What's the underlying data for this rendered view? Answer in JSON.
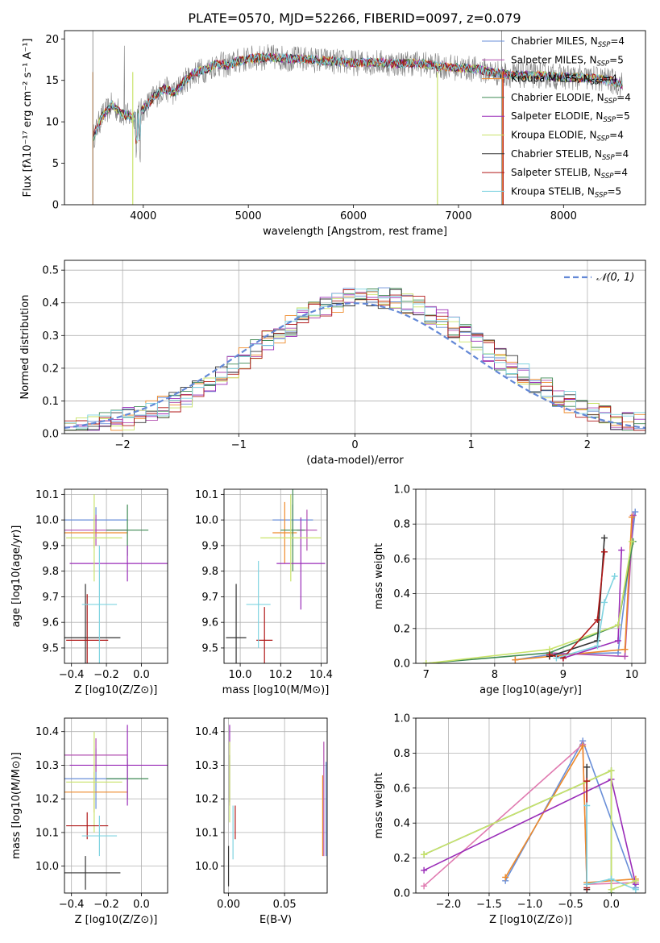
{
  "figure_title": "PLATE=0570, MJD=52266, FIBERID=0097, z=0.079",
  "legend_entries": [
    {
      "name": "Chabrier MILES, N",
      "sub": "SSP",
      "tail": "=4",
      "color": "#6a8fd8"
    },
    {
      "name": "Salpeter MILES, N",
      "sub": "SSP",
      "tail": "=5",
      "color": "#b24fb0"
    },
    {
      "name": "Kroupa MILES, N",
      "sub": "SSP",
      "tail": "=4",
      "color": "#ee8a2a"
    },
    {
      "name": "Chabrier ELODIE, N",
      "sub": "SSP",
      "tail": "=4",
      "color": "#3f8a54"
    },
    {
      "name": "Salpeter ELODIE, N",
      "sub": "SSP",
      "tail": "=5",
      "color": "#9a2cb8"
    },
    {
      "name": "Kroupa ELODIE, N",
      "sub": "SSP",
      "tail": "=4",
      "color": "#c9e36a"
    },
    {
      "name": "Chabrier STELIB, N",
      "sub": "SSP",
      "tail": "=4",
      "color": "#333333"
    },
    {
      "name": "Salpeter STELIB, N",
      "sub": "SSP",
      "tail": "=4",
      "color": "#b01818"
    },
    {
      "name": "Kroupa STELIB, N",
      "sub": "SSP",
      "tail": "=5",
      "color": "#7fd3e0"
    }
  ],
  "chart_data": [
    {
      "id": "spectrum",
      "type": "line",
      "title": "PLATE=0570, MJD=52266, FIBERID=0097, z=0.079",
      "xlabel": "wavelength [Angstrom, rest frame]",
      "ylabel": "Flux [fλ10⁻¹⁷ erg cm⁻² s⁻¹ A⁻¹]",
      "xlim": [
        3250,
        8780
      ],
      "ylim": [
        0,
        21
      ],
      "xticks": [
        4000,
        5000,
        6000,
        7000,
        8000
      ],
      "yticks": [
        0,
        5,
        10,
        15,
        20
      ],
      "legend": "top-right",
      "envelope": [
        [
          3520,
          8
        ],
        [
          3600,
          10.5
        ],
        [
          3700,
          12
        ],
        [
          3800,
          11
        ],
        [
          3900,
          10.5
        ],
        [
          4000,
          11.5
        ],
        [
          4100,
          13
        ],
        [
          4200,
          14
        ],
        [
          4300,
          13.5
        ],
        [
          4400,
          15
        ],
        [
          4500,
          16
        ],
        [
          4600,
          16.3
        ],
        [
          4700,
          17
        ],
        [
          4800,
          16.8
        ],
        [
          4900,
          17.3
        ],
        [
          5000,
          17.6
        ],
        [
          5200,
          17.8
        ],
        [
          5400,
          17.6
        ],
        [
          5600,
          17.5
        ],
        [
          5800,
          17.3
        ],
        [
          6000,
          17.1
        ],
        [
          6200,
          17.2
        ],
        [
          6400,
          17
        ],
        [
          6600,
          17.1
        ],
        [
          6800,
          16.7
        ],
        [
          7000,
          16.5
        ],
        [
          7200,
          16.3
        ],
        [
          7400,
          15.8
        ],
        [
          7600,
          15.6
        ],
        [
          7800,
          15.6
        ],
        [
          8000,
          15.4
        ],
        [
          8200,
          15.3
        ],
        [
          8400,
          15.1
        ],
        [
          8560,
          14.5
        ]
      ]
    },
    {
      "id": "residual-histogram",
      "type": "line",
      "xlabel": "(data-model)/error",
      "ylabel": "Normed distribution",
      "xlim": [
        -2.5,
        2.5
      ],
      "ylim": [
        0,
        0.53
      ],
      "xticks": [
        -2,
        -1,
        0,
        1,
        2
      ],
      "yticks": [
        0,
        0.1,
        0.2,
        0.3,
        0.4,
        0.5
      ],
      "legend": "top-right",
      "legend_label": "𝒩(0, 1)",
      "reference_curve": "gaussian mean 0 sigma 1",
      "bin_width": 0.1
    },
    {
      "id": "age-vs-Z",
      "type": "scatter",
      "xlabel": "Z [log10(Z/Z⊙)]",
      "ylabel": "age  [log10(age/yr)]",
      "xlim": [
        -0.44,
        0.15
      ],
      "ylim": [
        9.44,
        10.12
      ],
      "xticks": [
        -0.4,
        -0.2,
        0.0
      ],
      "yticks": [
        9.5,
        9.6,
        9.7,
        9.8,
        9.9,
        10.0,
        10.1
      ],
      "points": [
        {
          "x": -0.26,
          "y": 10.0,
          "xerr": 0.18,
          "yerr": 0.05,
          "color": "#6a8fd8"
        },
        {
          "x": -0.26,
          "y": 9.96,
          "xerr": 0.18,
          "yerr": 0.06,
          "color": "#b24fb0"
        },
        {
          "x": -0.27,
          "y": 9.95,
          "xerr": 0.19,
          "yerr": 0.06,
          "color": "#ee8a2a"
        },
        {
          "x": -0.08,
          "y": 9.96,
          "xerr": 0.12,
          "yerr": 0.1,
          "color": "#3f8a54"
        },
        {
          "x": -0.08,
          "y": 9.83,
          "xerr": 0.33,
          "yerr": 0.07,
          "color": "#9a2cb8"
        },
        {
          "x": -0.27,
          "y": 9.93,
          "xerr": 0.16,
          "yerr": 0.17,
          "color": "#c9e36a"
        },
        {
          "x": -0.32,
          "y": 9.54,
          "xerr": 0.2,
          "yerr": 0.21,
          "color": "#333333"
        },
        {
          "x": -0.31,
          "y": 9.53,
          "xerr": 0.12,
          "yerr": 0.18,
          "color": "#b01818"
        },
        {
          "x": -0.24,
          "y": 9.67,
          "xerr": 0.1,
          "yerr": 0.23,
          "color": "#7fd3e0"
        }
      ]
    },
    {
      "id": "age-vs-mass",
      "type": "scatter",
      "xlabel": "mass [log10(M/M⊙)]",
      "ylabel": "",
      "xlim": [
        9.92,
        10.43
      ],
      "ylim": [
        9.44,
        10.12
      ],
      "xticks": [
        10.0,
        10.2,
        10.4
      ],
      "yticks": [
        9.5,
        9.6,
        9.7,
        9.8,
        9.9,
        10.0,
        10.1
      ],
      "points": [
        {
          "x": 10.26,
          "y": 10.0,
          "xerr": 0.1,
          "yerr": 0.06,
          "color": "#6a8fd8"
        },
        {
          "x": 10.33,
          "y": 9.96,
          "xerr": 0.05,
          "yerr": 0.08,
          "color": "#b24fb0"
        },
        {
          "x": 10.22,
          "y": 9.95,
          "xerr": 0.06,
          "yerr": 0.12,
          "color": "#ee8a2a"
        },
        {
          "x": 10.26,
          "y": 9.96,
          "xerr": 0.06,
          "yerr": 0.16,
          "color": "#3f8a54"
        },
        {
          "x": 10.3,
          "y": 9.83,
          "xerr": 0.12,
          "yerr": 0.18,
          "color": "#9a2cb8"
        },
        {
          "x": 10.25,
          "y": 9.93,
          "xerr": 0.15,
          "yerr": 0.17,
          "color": "#c9e36a"
        },
        {
          "x": 9.98,
          "y": 9.54,
          "xerr": 0.05,
          "yerr": 0.21,
          "color": "#333333"
        },
        {
          "x": 10.12,
          "y": 9.53,
          "xerr": 0.04,
          "yerr": 0.13,
          "color": "#b01818"
        },
        {
          "x": 10.09,
          "y": 9.67,
          "xerr": 0.06,
          "yerr": 0.17,
          "color": "#7fd3e0"
        }
      ]
    },
    {
      "id": "mass-weight-vs-age",
      "type": "line",
      "xlabel": "age  [log10(age/yr)]",
      "ylabel": "mass weight",
      "xlim": [
        6.85,
        10.2
      ],
      "ylim": [
        0,
        1.0
      ],
      "xticks": [
        7,
        8,
        9,
        10
      ],
      "yticks": [
        0.0,
        0.2,
        0.4,
        0.6,
        0.8,
        1.0
      ],
      "series": [
        {
          "color": "#6a8fd8",
          "points": [
            [
              8.3,
              0.02
            ],
            [
              8.8,
              0.05
            ],
            [
              9.8,
              0.06
            ],
            [
              10.05,
              0.87
            ]
          ]
        },
        {
          "color": "#b24fb0",
          "points": [
            [
              8.8,
              0.06
            ],
            [
              9.9,
              0.04
            ],
            [
              10.02,
              0.85
            ]
          ]
        },
        {
          "color": "#ee8a2a",
          "points": [
            [
              8.3,
              0.02
            ],
            [
              8.8,
              0.04
            ],
            [
              9.9,
              0.08
            ],
            [
              10.0,
              0.84
            ]
          ]
        },
        {
          "color": "#3f8a54",
          "points": [
            [
              7.0,
              0.0
            ],
            [
              8.8,
              0.06
            ],
            [
              9.8,
              0.22
            ],
            [
              10.02,
              0.7
            ]
          ]
        },
        {
          "color": "#9a2cb8",
          "points": [
            [
              8.8,
              0.05
            ],
            [
              9.0,
              0.03
            ],
            [
              9.8,
              0.13
            ],
            [
              9.85,
              0.65
            ]
          ]
        },
        {
          "color": "#c9e36a",
          "points": [
            [
              7.0,
              0.0
            ],
            [
              8.8,
              0.08
            ],
            [
              9.8,
              0.22
            ],
            [
              10.0,
              0.7
            ]
          ]
        },
        {
          "color": "#333333",
          "points": [
            [
              8.8,
              0.04
            ],
            [
              9.5,
              0.13
            ],
            [
              9.6,
              0.72
            ]
          ]
        },
        {
          "color": "#b01818",
          "points": [
            [
              8.8,
              0.05
            ],
            [
              9.0,
              0.03
            ],
            [
              9.5,
              0.25
            ],
            [
              9.6,
              0.64
            ]
          ]
        },
        {
          "color": "#7fd3e0",
          "points": [
            [
              8.9,
              0.03
            ],
            [
              9.5,
              0.1
            ],
            [
              9.6,
              0.35
            ],
            [
              9.75,
              0.5
            ]
          ]
        }
      ]
    },
    {
      "id": "mass-vs-Z",
      "type": "scatter",
      "xlabel": "Z [log10(Z/Z⊙)]",
      "ylabel": "mass [log10(M/M⊙)]",
      "xlim": [
        -0.44,
        0.15
      ],
      "ylim": [
        9.92,
        10.44
      ],
      "xticks": [
        -0.4,
        -0.2,
        0.0
      ],
      "yticks": [
        10.0,
        10.1,
        10.2,
        10.3,
        10.4
      ],
      "points": [
        {
          "x": -0.26,
          "y": 10.26,
          "xerr": 0.18,
          "yerr": 0.09,
          "color": "#6a8fd8"
        },
        {
          "x": -0.26,
          "y": 10.33,
          "xerr": 0.18,
          "yerr": 0.05,
          "color": "#b24fb0"
        },
        {
          "x": -0.27,
          "y": 10.22,
          "xerr": 0.19,
          "yerr": 0.06,
          "color": "#ee8a2a"
        },
        {
          "x": -0.08,
          "y": 10.26,
          "xerr": 0.12,
          "yerr": 0.06,
          "color": "#3f8a54"
        },
        {
          "x": -0.08,
          "y": 10.3,
          "xerr": 0.33,
          "yerr": 0.12,
          "color": "#9a2cb8"
        },
        {
          "x": -0.27,
          "y": 10.25,
          "xerr": 0.16,
          "yerr": 0.15,
          "color": "#c9e36a"
        },
        {
          "x": -0.32,
          "y": 9.98,
          "xerr": 0.2,
          "yerr": 0.05,
          "color": "#333333"
        },
        {
          "x": -0.31,
          "y": 10.12,
          "xerr": 0.12,
          "yerr": 0.04,
          "color": "#b01818"
        },
        {
          "x": -0.24,
          "y": 10.09,
          "xerr": 0.1,
          "yerr": 0.06,
          "color": "#7fd3e0"
        }
      ]
    },
    {
      "id": "mass-vs-ebv",
      "type": "scatter",
      "xlabel": "E(B-V)",
      "ylabel": "",
      "xlim": [
        -0.004,
        0.088
      ],
      "ylim": [
        9.92,
        10.44
      ],
      "xticks": [
        0.0,
        0.05
      ],
      "yticks": [
        10.0,
        10.1,
        10.2,
        10.3,
        10.4
      ],
      "points": [
        {
          "x": 0.087,
          "y": 10.17,
          "yerr": 0.14,
          "color": "#6a8fd8"
        },
        {
          "x": 0.085,
          "y": 10.2,
          "yerr": 0.17,
          "color": "#b24fb0"
        },
        {
          "x": 0.084,
          "y": 10.15,
          "yerr": 0.12,
          "color": "#ee8a2a"
        },
        {
          "x": 0.001,
          "y": 10.26,
          "yerr": 0.07,
          "color": "#3f8a54"
        },
        {
          "x": 0.001,
          "y": 10.3,
          "yerr": 0.12,
          "color": "#9a2cb8"
        },
        {
          "x": 0.001,
          "y": 10.25,
          "yerr": 0.12,
          "color": "#c9e36a"
        },
        {
          "x": 0.0,
          "y": 10.0,
          "yerr": 0.06,
          "color": "#333333"
        },
        {
          "x": 0.006,
          "y": 10.13,
          "yerr": 0.05,
          "color": "#b01818"
        },
        {
          "x": 0.004,
          "y": 10.1,
          "yerr": 0.08,
          "color": "#7fd3e0"
        }
      ]
    },
    {
      "id": "mass-weight-vs-Z",
      "type": "line",
      "xlabel": "Z [log10(Z/Z⊙)]",
      "ylabel": "mass weight",
      "xlim": [
        -2.4,
        0.42
      ],
      "ylim": [
        0,
        1.0
      ],
      "xticks": [
        -2.0,
        -1.5,
        -1.0,
        -0.5,
        0.0
      ],
      "yticks": [
        0.0,
        0.2,
        0.4,
        0.6,
        0.8,
        1.0
      ],
      "series": [
        {
          "color": "#6a8fd8",
          "points": [
            [
              -1.3,
              0.07
            ],
            [
              -0.35,
              0.87
            ],
            [
              0.3,
              0.03
            ]
          ]
        },
        {
          "color": "#e07ab0",
          "points": [
            [
              -2.3,
              0.04
            ],
            [
              -0.35,
              0.85
            ],
            [
              -0.3,
              0.05
            ],
            [
              0.3,
              0.06
            ]
          ]
        },
        {
          "color": "#ee8a2a",
          "points": [
            [
              -1.3,
              0.09
            ],
            [
              -0.35,
              0.84
            ],
            [
              -0.3,
              0.06
            ],
            [
              0.3,
              0.08
            ]
          ]
        },
        {
          "color": "#3f8a54",
          "points": [
            [
              -2.3,
              0.22
            ],
            [
              0.0,
              0.7
            ],
            [
              0.0,
              0.0
            ]
          ]
        },
        {
          "color": "#9a2cb8",
          "points": [
            [
              -2.3,
              0.13
            ],
            [
              0.0,
              0.65
            ],
            [
              0.3,
              0.05
            ]
          ]
        },
        {
          "color": "#c9e36a",
          "points": [
            [
              -2.3,
              0.22
            ],
            [
              0.0,
              0.7
            ],
            [
              0.0,
              0.02
            ],
            [
              0.3,
              0.07
            ]
          ]
        },
        {
          "color": "#333333",
          "points": [
            [
              -0.3,
              0.72
            ],
            [
              -0.3,
              0.02
            ]
          ]
        },
        {
          "color": "#b01818",
          "points": [
            [
              -0.3,
              0.64
            ],
            [
              -0.3,
              0.03
            ]
          ]
        },
        {
          "color": "#7fd3e0",
          "points": [
            [
              -0.3,
              0.5
            ],
            [
              -0.3,
              0.05
            ],
            [
              0.0,
              0.08
            ],
            [
              0.3,
              0.02
            ]
          ]
        }
      ]
    }
  ]
}
